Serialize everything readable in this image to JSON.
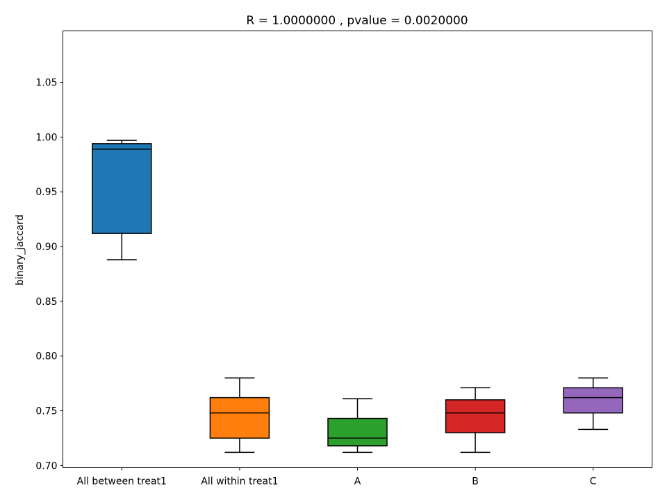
{
  "chart_data": {
    "type": "box",
    "title": "R = 1.0000000 , pvalue = 0.0020000",
    "xlabel": "",
    "ylabel": "binary_jaccard",
    "ylim": [
      0.698,
      1.097
    ],
    "yticks": [
      "0.70",
      "0.75",
      "0.80",
      "0.85",
      "0.90",
      "0.95",
      "1.00",
      "1.05"
    ],
    "grid": false,
    "categories": [
      "All between treat1",
      "All within treat1",
      "A",
      "B",
      "C"
    ],
    "boxes": [
      {
        "whislo": 0.888,
        "q1": 0.912,
        "med": 0.989,
        "q3": 0.994,
        "whishi": 0.997,
        "color": "#1f77b4"
      },
      {
        "whislo": 0.712,
        "q1": 0.725,
        "med": 0.748,
        "q3": 0.762,
        "whishi": 0.78,
        "color": "#ff7f0e"
      },
      {
        "whislo": 0.712,
        "q1": 0.718,
        "med": 0.725,
        "q3": 0.743,
        "whishi": 0.761,
        "color": "#2ca02c"
      },
      {
        "whislo": 0.712,
        "q1": 0.73,
        "med": 0.748,
        "q3": 0.76,
        "whishi": 0.771,
        "color": "#d62728"
      },
      {
        "whislo": 0.733,
        "q1": 0.748,
        "med": 0.762,
        "q3": 0.771,
        "whishi": 0.78,
        "color": "#9467bd"
      }
    ]
  }
}
